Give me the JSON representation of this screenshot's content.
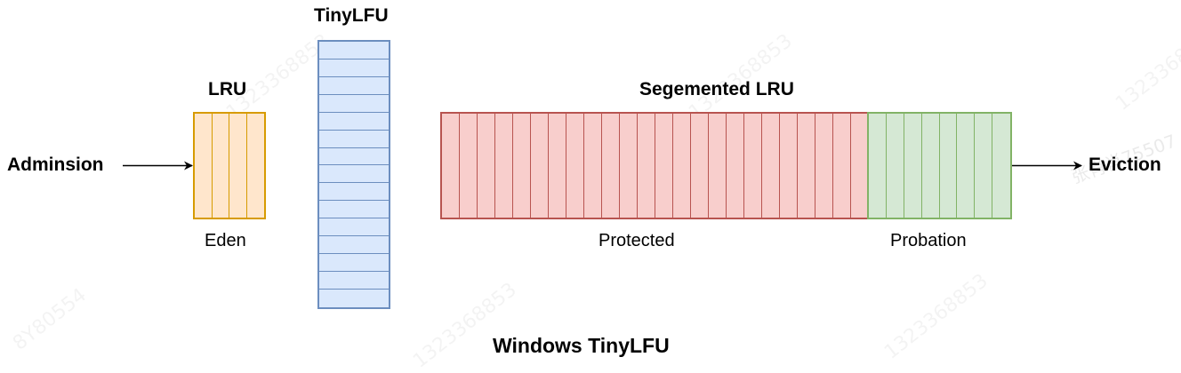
{
  "diagram": {
    "title": "Windows TinyLFU",
    "admission_label": "Adminsion",
    "eviction_label": "Eviction",
    "lru": {
      "heading": "LRU",
      "caption": "Eden",
      "cell_count": 4,
      "fill_color": "#ffe6cc",
      "stroke_color": "#d79b00"
    },
    "tinylfu": {
      "heading": "TinyLFU",
      "cell_count": 15,
      "fill_color": "#dae8fc",
      "stroke_color": "#6c8ebf"
    },
    "segmented_lru": {
      "heading": "Segemented LRU",
      "protected": {
        "caption": "Protected",
        "cell_count": 24,
        "fill_color": "#f8cecc",
        "stroke_color": "#b85450"
      },
      "probation": {
        "caption": "Probation",
        "cell_count": 8,
        "fill_color": "#d5e8d4",
        "stroke_color": "#82b366"
      }
    },
    "arrow_color": "#000000"
  }
}
